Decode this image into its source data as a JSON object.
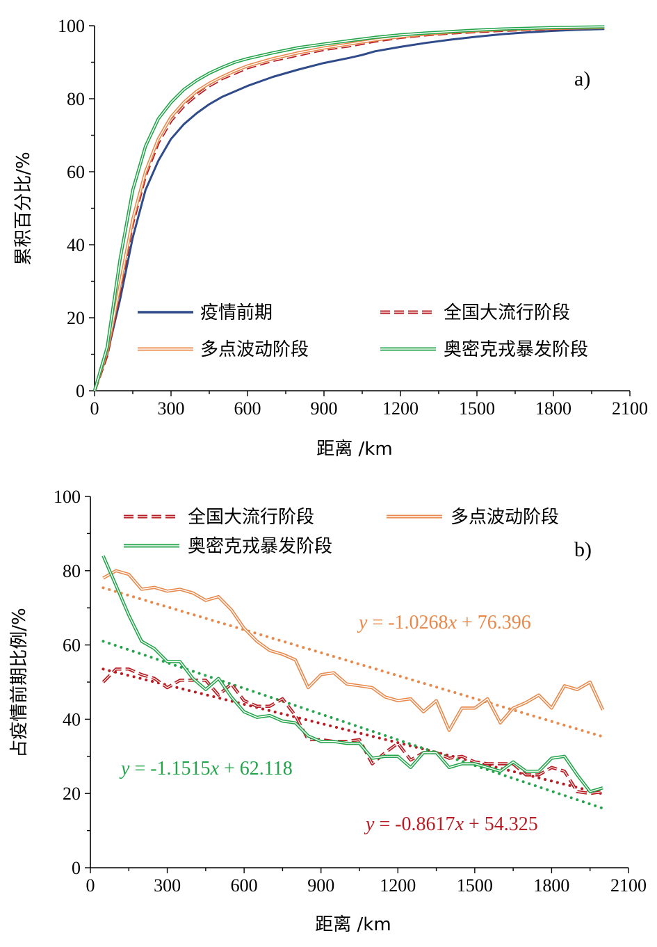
{
  "chart_data": [
    {
      "panel": "a)",
      "type": "line",
      "xlabel": "距离 /km",
      "ylabel": "累积百分比/%",
      "xlim": [
        0,
        2100
      ],
      "ylim": [
        0,
        100
      ],
      "xticks": [
        "0",
        "300",
        "600",
        "900",
        "1200",
        "1500",
        "1800",
        "2100"
      ],
      "yticks": [
        "0",
        "20",
        "40",
        "60",
        "80",
        "100"
      ],
      "legend_position": "bottom-right, two columns",
      "series": [
        {
          "name": "疫情前期",
          "style": "single",
          "color": "#2f4b8a",
          "points": [
            [
              0,
              0
            ],
            [
              50,
              10
            ],
            [
              100,
              25
            ],
            [
              150,
              42
            ],
            [
              200,
              55
            ],
            [
              250,
              63
            ],
            [
              300,
              69
            ],
            [
              350,
              73
            ],
            [
              400,
              76
            ],
            [
              450,
              78.5
            ],
            [
              500,
              80.5
            ],
            [
              550,
              82
            ],
            [
              600,
              83.5
            ],
            [
              700,
              86
            ],
            [
              800,
              88
            ],
            [
              900,
              89.8
            ],
            [
              1000,
              91.2
            ],
            [
              1050,
              92
            ],
            [
              1100,
              93
            ],
            [
              1200,
              94.2
            ],
            [
              1300,
              95.3
            ],
            [
              1400,
              96.2
            ],
            [
              1500,
              97
            ],
            [
              1600,
              97.7
            ],
            [
              1700,
              98.2
            ],
            [
              1800,
              98.6
            ],
            [
              1900,
              98.9
            ],
            [
              2000,
              99.1
            ]
          ]
        },
        {
          "name": "全国大流行阶段",
          "style": "dashed",
          "color": "#b81c22",
          "points": [
            [
              0,
              0
            ],
            [
              50,
              10
            ],
            [
              100,
              28
            ],
            [
              150,
              46
            ],
            [
              200,
              59
            ],
            [
              250,
              68
            ],
            [
              300,
              74
            ],
            [
              350,
              78
            ],
            [
              400,
              81
            ],
            [
              450,
              83.5
            ],
            [
              500,
              85.5
            ],
            [
              550,
              87
            ],
            [
              600,
              88.5
            ],
            [
              700,
              90.5
            ],
            [
              800,
              92
            ],
            [
              900,
              93.5
            ],
            [
              1000,
              94.5
            ],
            [
              1100,
              95.8
            ],
            [
              1200,
              96.8
            ],
            [
              1300,
              97.5
            ],
            [
              1400,
              98
            ],
            [
              1500,
              98.4
            ],
            [
              1600,
              98.7
            ],
            [
              1700,
              99
            ],
            [
              1800,
              99.2
            ],
            [
              1900,
              99.4
            ],
            [
              2000,
              99.5
            ]
          ]
        },
        {
          "name": "多点波动阶段",
          "style": "double",
          "color": "#e8884a",
          "points": [
            [
              0,
              0
            ],
            [
              50,
              11
            ],
            [
              100,
              29
            ],
            [
              150,
              47
            ],
            [
              200,
              60
            ],
            [
              250,
              69
            ],
            [
              300,
              75
            ],
            [
              350,
              79
            ],
            [
              400,
              82
            ],
            [
              450,
              84.2
            ],
            [
              500,
              86
            ],
            [
              550,
              87.6
            ],
            [
              600,
              89
            ],
            [
              700,
              91
            ],
            [
              800,
              92.6
            ],
            [
              900,
              93.9
            ],
            [
              1000,
              95
            ],
            [
              1100,
              96.1
            ],
            [
              1200,
              97
            ],
            [
              1300,
              97.7
            ],
            [
              1400,
              98.2
            ],
            [
              1500,
              98.6
            ],
            [
              1600,
              98.9
            ],
            [
              1700,
              99.1
            ],
            [
              1800,
              99.3
            ],
            [
              1900,
              99.4
            ],
            [
              2000,
              99.5
            ]
          ]
        },
        {
          "name": "奥密克戎暴发阶段",
          "style": "double",
          "color": "#22a54a",
          "points": [
            [
              0,
              0
            ],
            [
              50,
              12
            ],
            [
              100,
              36
            ],
            [
              150,
              55
            ],
            [
              200,
              67
            ],
            [
              250,
              74.5
            ],
            [
              300,
              79
            ],
            [
              350,
              82.5
            ],
            [
              400,
              85
            ],
            [
              450,
              87
            ],
            [
              500,
              88.6
            ],
            [
              550,
              90
            ],
            [
              600,
              91
            ],
            [
              700,
              92.6
            ],
            [
              800,
              94
            ],
            [
              900,
              95
            ],
            [
              1000,
              95.9
            ],
            [
              1100,
              96.8
            ],
            [
              1200,
              97.5
            ],
            [
              1300,
              98
            ],
            [
              1400,
              98.4
            ],
            [
              1500,
              98.8
            ],
            [
              1600,
              99.1
            ],
            [
              1700,
              99.3
            ],
            [
              1800,
              99.5
            ],
            [
              1900,
              99.6
            ],
            [
              2000,
              99.7
            ]
          ]
        }
      ]
    },
    {
      "panel": "b)",
      "type": "line",
      "xlabel": "距离 /km",
      "ylabel": "占疫情前期比例/%",
      "xlim": [
        0,
        2100
      ],
      "ylim": [
        0,
        100
      ],
      "xticks": [
        "0",
        "300",
        "600",
        "900",
        "1200",
        "1500",
        "1800",
        "2100"
      ],
      "yticks": [
        "0",
        "20",
        "40",
        "60",
        "80",
        "100"
      ],
      "legend_position": "top",
      "series": [
        {
          "name": "全国大流行阶段",
          "style": "dashed",
          "color": "#b81c22",
          "x": [
            50,
            100,
            150,
            200,
            250,
            300,
            350,
            400,
            450,
            500,
            550,
            600,
            650,
            700,
            750,
            800,
            850,
            900,
            950,
            1000,
            1050,
            1100,
            1150,
            1200,
            1250,
            1300,
            1350,
            1400,
            1450,
            1500,
            1550,
            1600,
            1650,
            1700,
            1750,
            1800,
            1850,
            1900,
            1950,
            2000
          ],
          "y": [
            50,
            53.5,
            53.5,
            52,
            51,
            48.5,
            50.5,
            50.5,
            50.5,
            46.5,
            49.5,
            45,
            43.5,
            43.5,
            45.5,
            41,
            34.5,
            34.5,
            34,
            34,
            34.5,
            28,
            31,
            33.5,
            29,
            31,
            31,
            29.5,
            30,
            28.5,
            28,
            28,
            28,
            25,
            25,
            27,
            26,
            20.5,
            20,
            20.5
          ],
          "trend_label": "y = -0.8617x + 54.325",
          "trend": [
            53.5,
            19.9
          ]
        },
        {
          "name": "多点波动阶段",
          "style": "double",
          "color": "#e8884a",
          "x": [
            50,
            100,
            150,
            200,
            250,
            300,
            350,
            400,
            450,
            500,
            550,
            600,
            650,
            700,
            750,
            800,
            850,
            900,
            950,
            1000,
            1050,
            1100,
            1150,
            1200,
            1250,
            1300,
            1350,
            1400,
            1450,
            1500,
            1550,
            1600,
            1650,
            1700,
            1750,
            1800,
            1850,
            1900,
            1950,
            2000
          ],
          "y": [
            78,
            80,
            79,
            75,
            75.5,
            74.5,
            75,
            74,
            72,
            73,
            69.5,
            64.5,
            61,
            58.5,
            57.5,
            56,
            48.5,
            52,
            52.5,
            49.5,
            49,
            48.5,
            46,
            45,
            45.5,
            42,
            45,
            37,
            43,
            43,
            45.5,
            39,
            43,
            44.5,
            46.5,
            43,
            49,
            48,
            50,
            42.5
          ],
          "trend_label": "y = -1.0268x + 76.396",
          "trend": [
            75.4,
            35.3
          ]
        },
        {
          "name": "奥密克戎暴发阶段",
          "style": "double",
          "color": "#22a54a",
          "x": [
            50,
            100,
            150,
            200,
            250,
            300,
            350,
            400,
            450,
            500,
            550,
            600,
            650,
            700,
            750,
            800,
            850,
            900,
            950,
            1000,
            1050,
            1100,
            1150,
            1200,
            1250,
            1300,
            1350,
            1400,
            1450,
            1500,
            1550,
            1600,
            1650,
            1700,
            1750,
            1800,
            1850,
            1900,
            1950,
            2000
          ],
          "y": [
            84,
            76,
            68,
            61,
            59,
            55.5,
            55.5,
            51,
            48,
            51,
            46,
            42,
            40.5,
            41,
            39.5,
            39,
            35.5,
            34,
            34,
            33.5,
            33.5,
            29.5,
            30,
            30,
            27,
            31,
            31,
            27,
            28,
            28,
            27,
            26,
            28.5,
            26,
            26,
            29.5,
            30,
            25,
            20.5,
            21.5
          ],
          "trend_label": "y = -1.1515x + 62.118",
          "trend": [
            61,
            16
          ]
        }
      ]
    }
  ],
  "panel_a": {
    "label": "a)",
    "xlabel": "距离 /km",
    "ylabel": "累积百分比/%",
    "legend": [
      "疫情前期",
      "全国大流行阶段",
      "多点波动阶段",
      "奥密克戎暴发阶段"
    ]
  },
  "panel_b": {
    "label": "b)",
    "xlabel": "距离 /km",
    "ylabel": "占疫情前期比例/%",
    "legend": [
      "全国大流行阶段",
      "多点波动阶段",
      "奥密克戎暴发阶段"
    ]
  },
  "eq_colors": {
    "orange": "#e8884a",
    "green": "#22a54a",
    "red": "#b81c22"
  }
}
